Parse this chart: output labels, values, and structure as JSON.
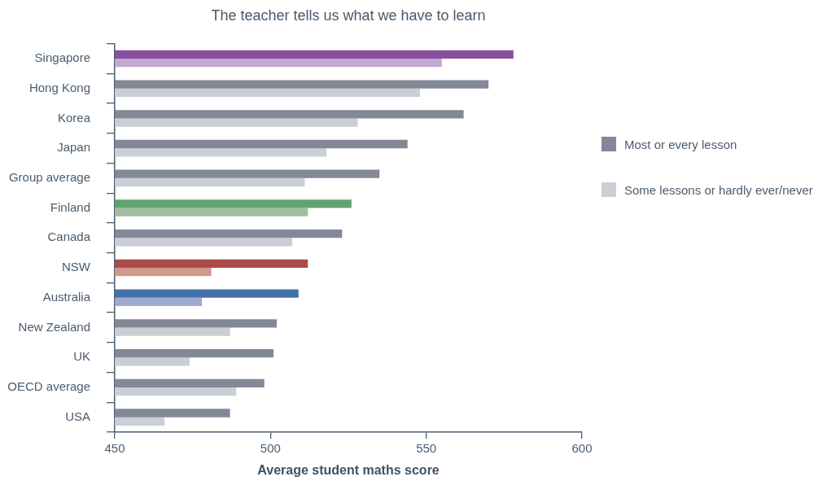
{
  "chart_data": {
    "type": "bar",
    "orientation": "horizontal",
    "title": "The teacher tells us what we have to learn",
    "xlabel": "Average student maths score",
    "categories": [
      "Singapore",
      "Hong Kong",
      "Korea",
      "Japan",
      "Group average",
      "Finland",
      "Canada",
      "NSW",
      "Australia",
      "New Zealand",
      "UK",
      "OECD average",
      "USA"
    ],
    "series": [
      {
        "name": "Most or every lesson",
        "color": "#828896",
        "colors": [
          "#874f9e",
          "#828896",
          "#828896",
          "#828896",
          "#828896",
          "#62a271",
          "#828896",
          "#a94c48",
          "#4471a8",
          "#828896",
          "#828896",
          "#828896",
          "#828896"
        ],
        "values": [
          578,
          570,
          562,
          544,
          535,
          526,
          523,
          512,
          509,
          502,
          501,
          498,
          487
        ]
      },
      {
        "name": "Some lessons or hardly ever/never",
        "color": "#cbced6",
        "colors": [
          "#c1a9d2",
          "#cbced6",
          "#cbced6",
          "#cbced6",
          "#cbced6",
          "#a1bfa0",
          "#cbced6",
          "#d0998d",
          "#9eaacf",
          "#cbced6",
          "#cbced6",
          "#cbced6",
          "#cbced6"
        ],
        "values": [
          555,
          548,
          528,
          518,
          511,
          512,
          507,
          481,
          478,
          487,
          474,
          489,
          466
        ]
      }
    ],
    "xlim": [
      450,
      600
    ],
    "xticks": [
      450,
      500,
      550,
      600
    ],
    "grid": false,
    "legend": "right"
  }
}
